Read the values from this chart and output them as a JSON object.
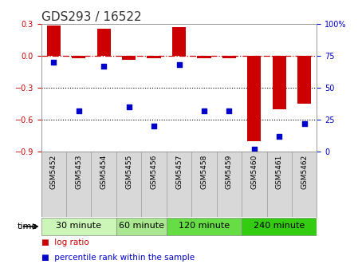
{
  "title": "GDS293 / 16522",
  "samples": [
    "GSM5452",
    "GSM5453",
    "GSM5454",
    "GSM5455",
    "GSM5456",
    "GSM5457",
    "GSM5458",
    "GSM5459",
    "GSM5460",
    "GSM5461",
    "GSM5462"
  ],
  "log_ratio": [
    0.29,
    -0.02,
    0.26,
    -0.04,
    -0.02,
    0.275,
    -0.02,
    -0.02,
    -0.8,
    -0.5,
    -0.45
  ],
  "percentile": [
    70,
    32,
    67,
    35,
    20,
    68,
    32,
    32,
    2,
    12,
    22
  ],
  "bar_color": "#cc0000",
  "dot_color": "#0000cc",
  "zero_line_color": "#cc0000",
  "ylim_left": [
    -0.9,
    0.3
  ],
  "ylim_right": [
    0,
    100
  ],
  "yticks_left": [
    -0.9,
    -0.6,
    -0.3,
    0.0,
    0.3
  ],
  "yticks_right": [
    0,
    25,
    50,
    75,
    100
  ],
  "dotted_lines": [
    -0.3,
    -0.6
  ],
  "groups": [
    {
      "label": "30 minute",
      "start": 0,
      "end": 2,
      "color": "#ccf5b8"
    },
    {
      "label": "60 minute",
      "start": 3,
      "end": 4,
      "color": "#aae890"
    },
    {
      "label": "120 minute",
      "start": 5,
      "end": 7,
      "color": "#66dd44"
    },
    {
      "label": "240 minute",
      "start": 8,
      "end": 10,
      "color": "#33cc11"
    }
  ],
  "bar_width": 0.55,
  "bg_color": "#ffffff",
  "title_fontsize": 11,
  "tick_fontsize": 7,
  "label_fontsize": 6.5,
  "group_fontsize": 8,
  "legend_fontsize": 7.5
}
